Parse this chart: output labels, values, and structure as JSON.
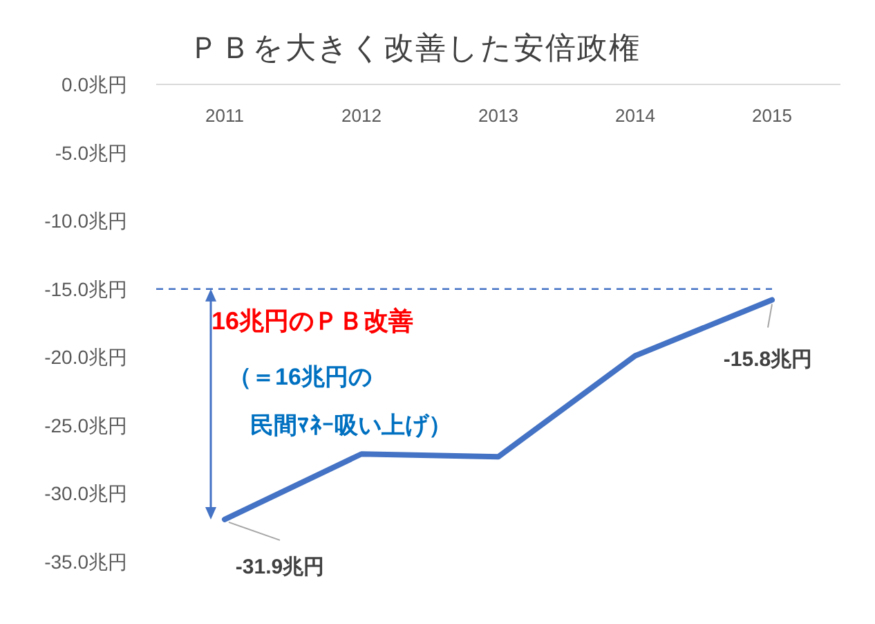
{
  "chart_data": {
    "type": "line",
    "title": "ＰＢを大きく改善した安倍政権",
    "categories": [
      "2011",
      "2012",
      "2013",
      "2014",
      "2015"
    ],
    "series": [
      {
        "color": "#4472c4",
        "values": [
          -31.9,
          -27.1,
          -27.3,
          -19.9,
          -15.8
        ]
      }
    ],
    "ylim": [
      -35,
      0
    ],
    "yticks": [
      {
        "value": 0,
        "label": "0.0兆円"
      },
      {
        "value": -5,
        "label": "-5.0兆円"
      },
      {
        "value": -10,
        "label": "-10.0兆円"
      },
      {
        "value": -15,
        "label": "-15.0兆円"
      },
      {
        "value": -20,
        "label": "-20.0兆円"
      },
      {
        "value": -25,
        "label": "-25.0兆円"
      },
      {
        "value": -30,
        "label": "-30.0兆円"
      },
      {
        "value": -35,
        "label": "-35.0兆円"
      }
    ],
    "ref_lines": [
      {
        "axis": "y",
        "value": -15,
        "color": "#4472c4",
        "line_style": "dashed"
      }
    ],
    "annotations": [
      {
        "text": "-31.9兆円",
        "x": "2011",
        "y": -31.9
      },
      {
        "text": "-15.8兆円",
        "x": "2015",
        "y": -15.8
      },
      "16兆円のＰＢ改善",
      "（＝16兆円の",
      "民間ﾏﾈｰ吸い上げ）"
    ]
  }
}
